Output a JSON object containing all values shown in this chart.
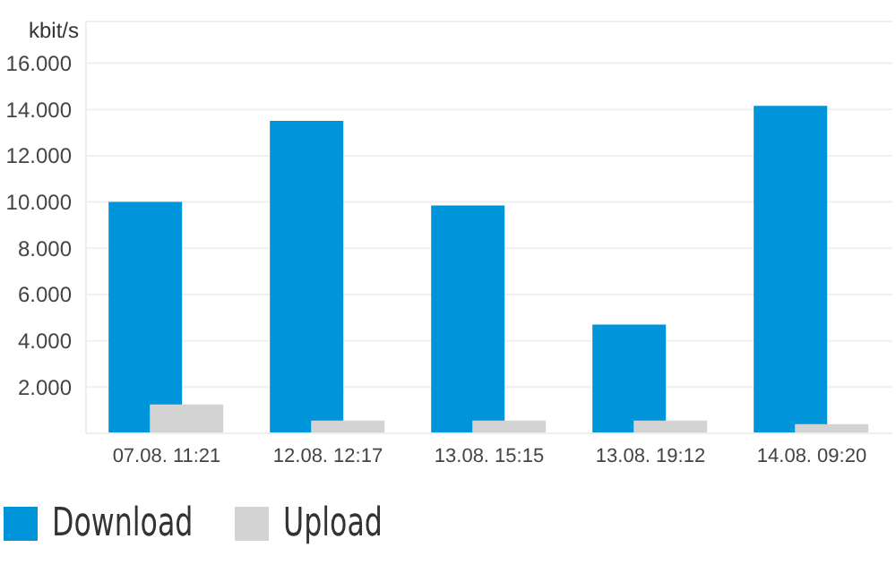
{
  "chart_data": {
    "type": "bar",
    "ylabel": "kbit/s",
    "categories": [
      "07.08. 11:21",
      "12.08. 12:17",
      "13.08. 15:15",
      "13.08. 19:12",
      "14.08. 09:20"
    ],
    "series": [
      {
        "name": "Download",
        "color": "#0095da",
        "values": [
          10000,
          13500,
          9850,
          4700,
          14150
        ]
      },
      {
        "name": "Upload",
        "color": "#d3d3d3",
        "values": [
          1250,
          550,
          550,
          550,
          400
        ]
      }
    ],
    "ylim": [
      0,
      17800
    ],
    "yticks": [
      {
        "value": 2000,
        "label": "2.000"
      },
      {
        "value": 4000,
        "label": "4.000"
      },
      {
        "value": 6000,
        "label": "6.000"
      },
      {
        "value": 8000,
        "label": "8.000"
      },
      {
        "value": 10000,
        "label": "10.000"
      },
      {
        "value": 12000,
        "label": "12.000"
      },
      {
        "value": 14000,
        "label": "14.000"
      },
      {
        "value": 16000,
        "label": "16.000"
      }
    ],
    "grid": "y",
    "legend": "bottom left"
  }
}
